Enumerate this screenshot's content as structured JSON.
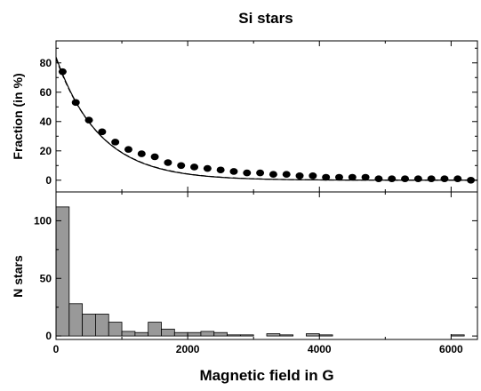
{
  "chart_data": {
    "title": "Si stars",
    "xlabel": "Magnetic field in G",
    "xlim": [
      0,
      6400
    ],
    "xticks": [
      0,
      2000,
      4000,
      6000
    ],
    "top": {
      "type": "scatter",
      "ylabel": "Fraction (in %)",
      "ylim": [
        -8,
        95
      ],
      "yticks": [
        0,
        20,
        40,
        60,
        80
      ],
      "points": {
        "x": [
          100,
          300,
          500,
          700,
          900,
          1100,
          1300,
          1500,
          1700,
          1900,
          2100,
          2300,
          2500,
          2700,
          2900,
          3100,
          3300,
          3500,
          3700,
          3900,
          4100,
          4300,
          4500,
          4700,
          4900,
          5100,
          5300,
          5500,
          5700,
          5900,
          6100,
          6300
        ],
        "y": [
          74,
          53,
          41,
          33,
          26,
          21,
          18,
          16,
          12,
          10,
          9,
          8,
          7,
          6,
          5,
          5,
          4,
          4,
          3,
          3,
          2,
          2,
          2,
          2,
          1,
          1,
          1,
          1,
          1,
          1,
          1,
          0
        ]
      },
      "fit_curves": [
        {
          "style": "solid",
          "a": 84,
          "b": 0.0015
        },
        {
          "style": "dashed",
          "a": 83,
          "b": 0.00148
        }
      ]
    },
    "bottom": {
      "type": "bar",
      "ylabel": "N stars",
      "ylim": [
        -3,
        125
      ],
      "yticks": [
        0,
        50,
        100
      ],
      "bin_width": 200,
      "bins": [
        0,
        200,
        400,
        600,
        800,
        1000,
        1200,
        1400,
        1600,
        1800,
        2000,
        2200,
        2400,
        2600,
        2800,
        3000,
        3200,
        3400,
        3600,
        3800,
        4000,
        4200,
        4400,
        4600,
        4800,
        5000,
        5200,
        5400,
        5600,
        5800,
        6000,
        6200
      ],
      "values": [
        112,
        28,
        19,
        19,
        12,
        4,
        3,
        12,
        6,
        3,
        3,
        4,
        3,
        1,
        1,
        0,
        2,
        1,
        0,
        2,
        1,
        0,
        0,
        0,
        0,
        0,
        0,
        0,
        0,
        0,
        1,
        0
      ],
      "bar_color": "#999999"
    }
  }
}
